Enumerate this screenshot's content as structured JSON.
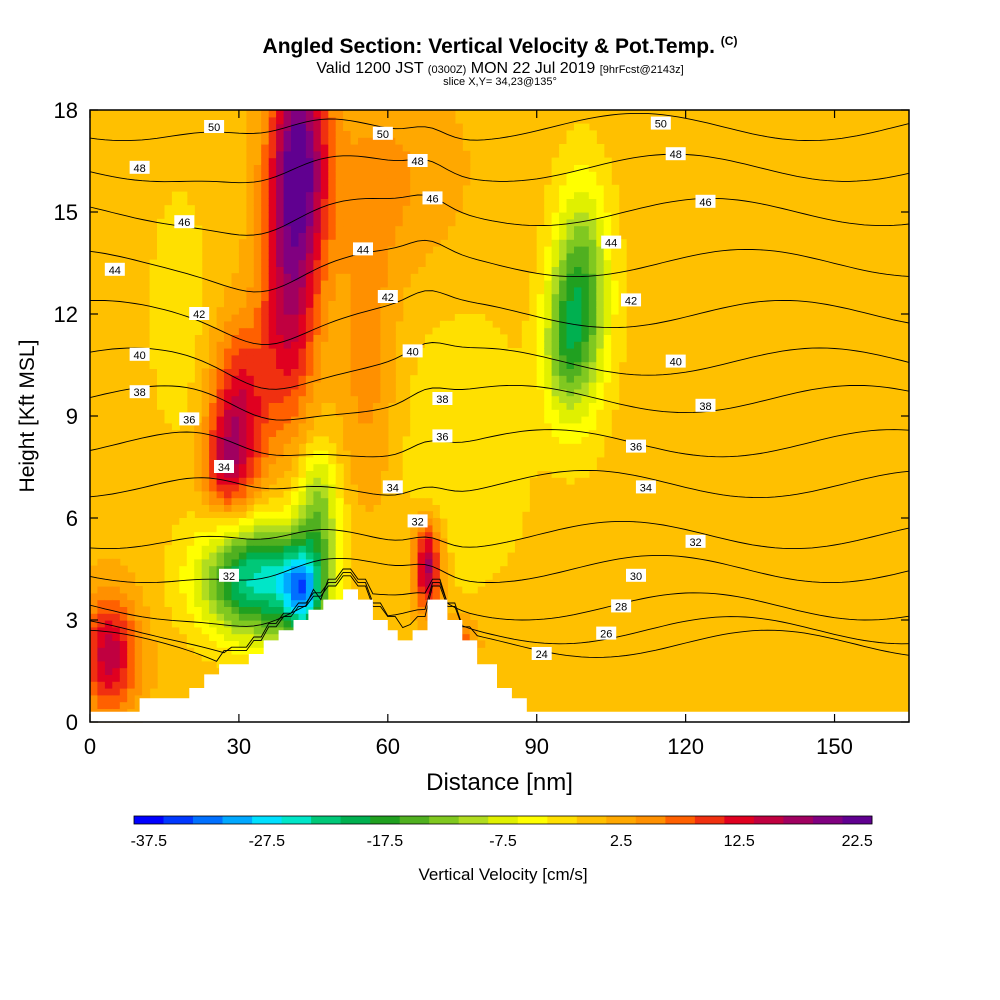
{
  "header": {
    "title": "Angled Section: Vertical Velocity & Pot.Temp.",
    "title_unit": "(C)",
    "subtitle_valid": "Valid 1200 JST",
    "subtitle_utc": "(0300Z)",
    "subtitle_date": "MON 22 Jul 2019",
    "subtitle_fcst": "[9hrFcst@2143z]",
    "slice": "slice X,Y= 34,23@135°"
  },
  "chart_data": {
    "type": "heatmap",
    "xlabel": "Distance [nm]",
    "ylabel": "Height [Kft MSL]",
    "xlim": [
      0,
      165
    ],
    "ylim": [
      0,
      18
    ],
    "x_ticks": [
      0,
      30,
      60,
      90,
      120,
      150
    ],
    "y_ticks": [
      0,
      3,
      6,
      9,
      12,
      15,
      18
    ],
    "terrain": [
      [
        0,
        0.3
      ],
      [
        10,
        0.3
      ],
      [
        10,
        0.7
      ],
      [
        20,
        0.7
      ],
      [
        20,
        1.0
      ],
      [
        23,
        1.0
      ],
      [
        23,
        1.4
      ],
      [
        26,
        1.4
      ],
      [
        26,
        1.7
      ],
      [
        32,
        1.7
      ],
      [
        32,
        2.0
      ],
      [
        35,
        2.0
      ],
      [
        35,
        2.4
      ],
      [
        38,
        2.4
      ],
      [
        38,
        2.7
      ],
      [
        41,
        2.7
      ],
      [
        41,
        3.0
      ],
      [
        44,
        3.0
      ],
      [
        44,
        3.3
      ],
      [
        47,
        3.3
      ],
      [
        47,
        3.6
      ],
      [
        51,
        3.6
      ],
      [
        51,
        3.9
      ],
      [
        54,
        3.9
      ],
      [
        54,
        3.6
      ],
      [
        57,
        3.6
      ],
      [
        57,
        3.0
      ],
      [
        60,
        3.0
      ],
      [
        60,
        2.7
      ],
      [
        62,
        2.7
      ],
      [
        62,
        2.4
      ],
      [
        65,
        2.4
      ],
      [
        65,
        2.7
      ],
      [
        68,
        2.7
      ],
      [
        68,
        3.6
      ],
      [
        72,
        3.6
      ],
      [
        72,
        3.0
      ],
      [
        75,
        3.0
      ],
      [
        75,
        2.4
      ],
      [
        78,
        2.4
      ],
      [
        78,
        1.7
      ],
      [
        82,
        1.7
      ],
      [
        82,
        1.0
      ],
      [
        85,
        1.0
      ],
      [
        85,
        0.7
      ],
      [
        88,
        0.7
      ],
      [
        88,
        0.3
      ],
      [
        165,
        0.3
      ]
    ],
    "velocity_features": [
      {
        "x": 42,
        "z": 16.5,
        "sx": 4,
        "sz": 2.3,
        "v": 22
      },
      {
        "x": 40,
        "z": 12,
        "sx": 4,
        "sz": 2.4,
        "v": 13
      },
      {
        "x": 30,
        "z": 9,
        "sx": 4,
        "sz": 1.8,
        "v": 14
      },
      {
        "x": 27,
        "z": 7.5,
        "sx": 3,
        "sz": 1.0,
        "v": 8
      },
      {
        "x": 4,
        "z": 2.0,
        "sx": 4,
        "sz": 1.2,
        "v": 15
      },
      {
        "x": 68,
        "z": 4.6,
        "sx": 2,
        "sz": 0.9,
        "v": 18
      },
      {
        "x": 74,
        "z": 2.3,
        "sx": 2.5,
        "sz": 0.5,
        "v": 10
      },
      {
        "x": 99,
        "z": 12.5,
        "sx": 4,
        "sz": 2.3,
        "v": -17
      },
      {
        "x": 95,
        "z": 11,
        "sx": 3,
        "sz": 1.5,
        "v": -8
      },
      {
        "x": 34,
        "z": 4.2,
        "sx": 8,
        "sz": 1.2,
        "v": -25
      },
      {
        "x": 43,
        "z": 3.8,
        "sx": 3,
        "sz": 0.9,
        "v": -20
      },
      {
        "x": 46,
        "z": 6.3,
        "sx": 3,
        "sz": 1.3,
        "v": -12
      },
      {
        "x": 56,
        "z": 10.5,
        "sx": 4,
        "sz": 3,
        "v": 5
      },
      {
        "x": 60,
        "z": 16,
        "sx": 10,
        "sz": 2,
        "v": 4
      },
      {
        "x": 18,
        "z": 12,
        "sx": 5,
        "sz": 3,
        "v": -3
      },
      {
        "x": 75,
        "z": 8,
        "sx": 10,
        "sz": 3,
        "v": -4
      },
      {
        "x": 150,
        "z": 12,
        "sx": 10,
        "sz": 5,
        "v": -1
      }
    ],
    "theta_contours": [
      {
        "value": 24,
        "label": "24",
        "base": 2.3,
        "label_x": 91,
        "label_z": 2.0
      },
      {
        "value": 26,
        "label": "26",
        "base": 2.7,
        "label_x": 104,
        "label_z": 2.6
      },
      {
        "value": 28,
        "label": "28",
        "base": 3.4,
        "label_x": 107,
        "label_z": 3.4
      },
      {
        "value": 30,
        "label": "30",
        "base": 4.5,
        "label_x": 110,
        "label_z": 4.3
      },
      {
        "value": 32,
        "label": "32",
        "base": 5.5,
        "label_x": 122,
        "label_z": 5.3,
        "label2": "32",
        "label2_x": 66,
        "label2_z": 5.9,
        "label3": "32",
        "label3_x": 28,
        "label3_z": 4.3
      },
      {
        "value": 34,
        "label": "34",
        "base": 7.0,
        "label_x": 112,
        "label_z": 6.9,
        "label2": "34",
        "label2_x": 61,
        "label2_z": 6.9,
        "label3": "34",
        "label3_x": 27,
        "label3_z": 7.5
      },
      {
        "value": 36,
        "label": "36",
        "base": 8.2,
        "label_x": 110,
        "label_z": 8.1,
        "label2": "36",
        "label2_x": 71,
        "label2_z": 8.4,
        "label3": "36",
        "label3_x": 20,
        "label3_z": 8.9
      },
      {
        "value": 38,
        "label": "38",
        "base": 9.5,
        "label_x": 124,
        "label_z": 9.3,
        "label2": "38",
        "label2_x": 71,
        "label2_z": 9.5,
        "label3": "38",
        "label3_x": 10,
        "label3_z": 9.7
      },
      {
        "value": 40,
        "label": "40",
        "base": 10.6,
        "label_x": 118,
        "label_z": 10.6,
        "label2": "40",
        "label2_x": 65,
        "label2_z": 10.9,
        "label3": "40",
        "label3_x": 10,
        "label3_z": 10.8
      },
      {
        "value": 42,
        "label": "42",
        "base": 12.0,
        "label_x": 109,
        "label_z": 12.4,
        "label2": "42",
        "label2_x": 60,
        "label2_z": 12.5,
        "label3": "42",
        "label3_x": 22,
        "label3_z": 12.0
      },
      {
        "value": 44,
        "label": "44",
        "base": 13.5,
        "label_x": 105,
        "label_z": 14.1,
        "label2": "44",
        "label2_x": 55,
        "label2_z": 13.9,
        "label3": "44",
        "label3_x": 5,
        "label3_z": 13.3
      },
      {
        "value": 46,
        "label": "46",
        "base": 15.0,
        "label_x": 124,
        "label_z": 15.3,
        "label2": "46",
        "label2_x": 69,
        "label2_z": 15.4,
        "label3": "46",
        "label3_x": 19,
        "label3_z": 14.7
      },
      {
        "value": 48,
        "label": "48",
        "base": 16.3,
        "label_x": 118,
        "label_z": 16.7,
        "label2": "48",
        "label2_x": 66,
        "label2_z": 16.5,
        "label3": "48",
        "label3_x": 10,
        "label3_z": 16.3
      },
      {
        "value": 50,
        "label": "50",
        "base": 17.5,
        "label_x": 115,
        "label_z": 17.6,
        "label2": "50",
        "label2_x": 59,
        "label2_z": 17.3,
        "label3": "50",
        "label3_x": 25,
        "label3_z": 17.5
      }
    ],
    "colorbar": {
      "label": "Vertical Velocity [cm/s]",
      "levels": [
        -37.5,
        -35,
        -32.5,
        -30,
        -27.5,
        -25,
        -22.5,
        -20,
        -17.5,
        -15,
        -12.5,
        -10,
        -7.5,
        -5,
        -2.5,
        0,
        2.5,
        5,
        7.5,
        10,
        12.5,
        15,
        17.5,
        20,
        22.5,
        25
      ],
      "tick_labels": [
        "-37.5",
        "-27.5",
        "-17.5",
        "-7.5",
        "2.5",
        "12.5",
        "22.5"
      ],
      "tick_values": [
        -37.5,
        -27.5,
        -17.5,
        -7.5,
        2.5,
        12.5,
        22.5
      ],
      "colors": [
        "#0000ff",
        "#0038ff",
        "#0070ff",
        "#00a8ff",
        "#00e0ff",
        "#00e6c8",
        "#00c878",
        "#00b050",
        "#20a020",
        "#50b020",
        "#80c820",
        "#b0dc20",
        "#e0f000",
        "#ffff00",
        "#ffe000",
        "#ffc000",
        "#ffa800",
        "#ff9000",
        "#ff6000",
        "#f03010",
        "#e00020",
        "#c00040",
        "#a00060",
        "#800080",
        "#600090"
      ]
    },
    "grid": false,
    "legend": "bottom"
  }
}
